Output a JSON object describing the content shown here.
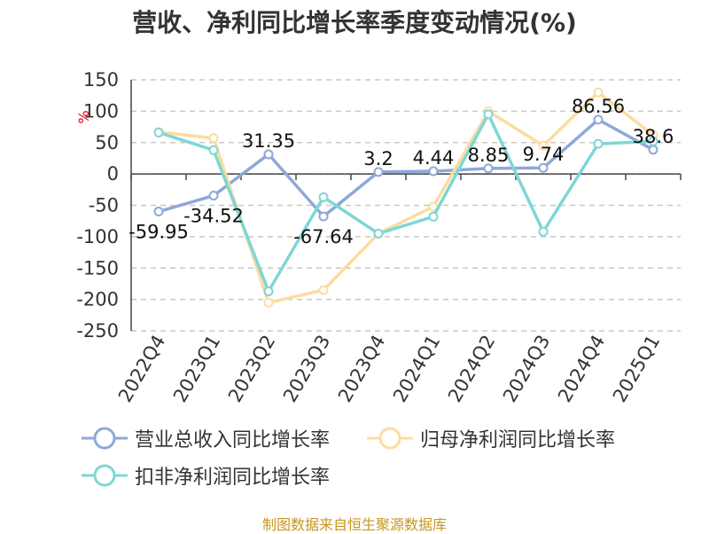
{
  "title": "营收、净利同比增长率季度变动情况(%)",
  "source": "制图数据来自恒生聚源数据库",
  "chart_data": {
    "type": "line",
    "title": "营收、净利同比增长率季度变动情况(%)",
    "ylabel": "%",
    "ylim": [
      -250,
      150
    ],
    "yticks": [
      150,
      100,
      50,
      0,
      -50,
      -100,
      -150,
      -200,
      -250
    ],
    "grid": true,
    "legend_position": "bottom",
    "categories": [
      "2022Q4",
      "2023Q1",
      "2023Q2",
      "2023Q3",
      "2023Q4",
      "2024Q1",
      "2024Q2",
      "2024Q3",
      "2024Q4",
      "2025Q1"
    ],
    "series": [
      {
        "name": "营业总收入同比增长率",
        "color": "#8fa8d8",
        "values": [
          -59.95,
          -34.52,
          31.35,
          -67.64,
          3.2,
          4.44,
          8.85,
          9.74,
          86.56,
          38.6
        ],
        "labels": [
          "-59.95",
          "-34.52",
          "31.35",
          "-67.64",
          "3.2",
          "4.44",
          "8.85",
          "9.74",
          "86.56",
          "38.6"
        ]
      },
      {
        "name": "归母净利润同比增长率",
        "color": "#fcdca0",
        "values": [
          67,
          57,
          -205,
          -185,
          -95,
          -52,
          100,
          45,
          130,
          62
        ]
      },
      {
        "name": "扣非净利润同比增长率",
        "color": "#7fd6d6",
        "values": [
          66,
          38,
          -187,
          -37,
          -95,
          -68,
          95,
          -92,
          48,
          52
        ]
      }
    ]
  }
}
